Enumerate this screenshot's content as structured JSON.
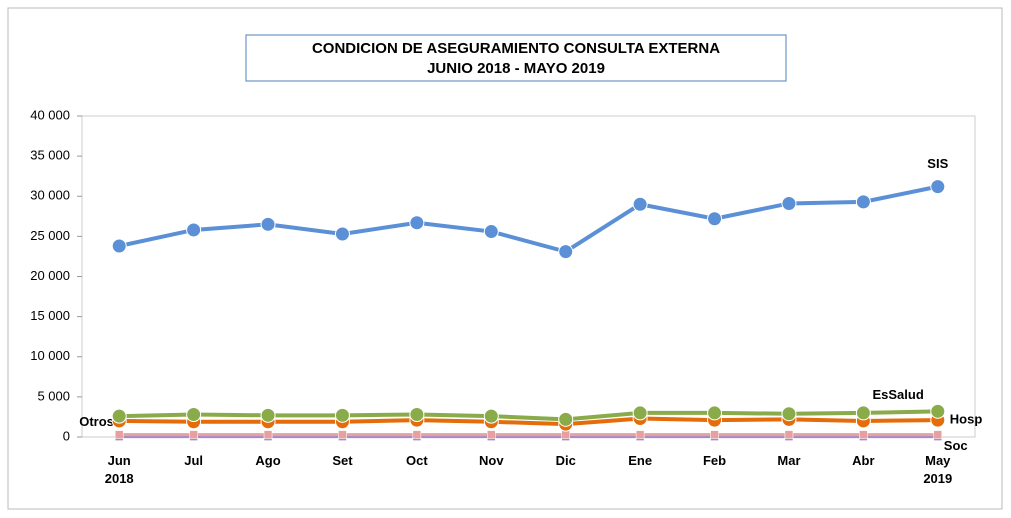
{
  "chart_data": {
    "type": "line",
    "title": "CONDICION DE ASEGURAMIENTO CONSULTA EXTERNA",
    "subtitle": "JUNIO 2018  -  MAYO 2019",
    "categories": [
      "Jun\n2018",
      "Jul",
      "Ago",
      "Set",
      "Oct",
      "Nov",
      "Dic",
      "Ene",
      "Feb",
      "Mar",
      "Abr",
      "May\n2019"
    ],
    "series": [
      {
        "name": "SIS",
        "color": "#5b8fd6",
        "values": [
          23800,
          25800,
          26500,
          25300,
          26700,
          25600,
          23100,
          29000,
          27200,
          29100,
          29300,
          31200
        ]
      },
      {
        "name": "EsSalud",
        "color": "#8aab4a",
        "values": [
          2600,
          2800,
          2700,
          2700,
          2800,
          2600,
          2200,
          3000,
          3000,
          2900,
          3000,
          3200
        ]
      },
      {
        "name": "Hosp",
        "color": "#e46c0a",
        "values": [
          2000,
          1900,
          1900,
          1900,
          2100,
          1900,
          1600,
          2300,
          2100,
          2200,
          2000,
          2100
        ]
      },
      {
        "name": "Otros",
        "color": "#e6a0a0",
        "values": [
          300,
          300,
          300,
          300,
          300,
          300,
          300,
          300,
          300,
          300,
          300,
          300
        ]
      },
      {
        "name": "Soc",
        "color": "#a58bc9",
        "values": [
          50,
          50,
          50,
          50,
          50,
          50,
          50,
          50,
          50,
          50,
          50,
          50
        ]
      }
    ],
    "ylim": [
      0,
      40000
    ],
    "yticks": [
      {
        "value": 0,
        "label": "0"
      },
      {
        "value": 5000,
        "label": "5 000"
      },
      {
        "value": 10000,
        "label": "10 000"
      },
      {
        "value": 15000,
        "label": "15 000"
      },
      {
        "value": 20000,
        "label": "20 000"
      },
      {
        "value": 25000,
        "label": "25 000"
      },
      {
        "value": 30000,
        "label": "30 000"
      },
      {
        "value": 35000,
        "label": "35 000"
      },
      {
        "value": 40000,
        "label": "40 000"
      }
    ],
    "grid": false
  }
}
